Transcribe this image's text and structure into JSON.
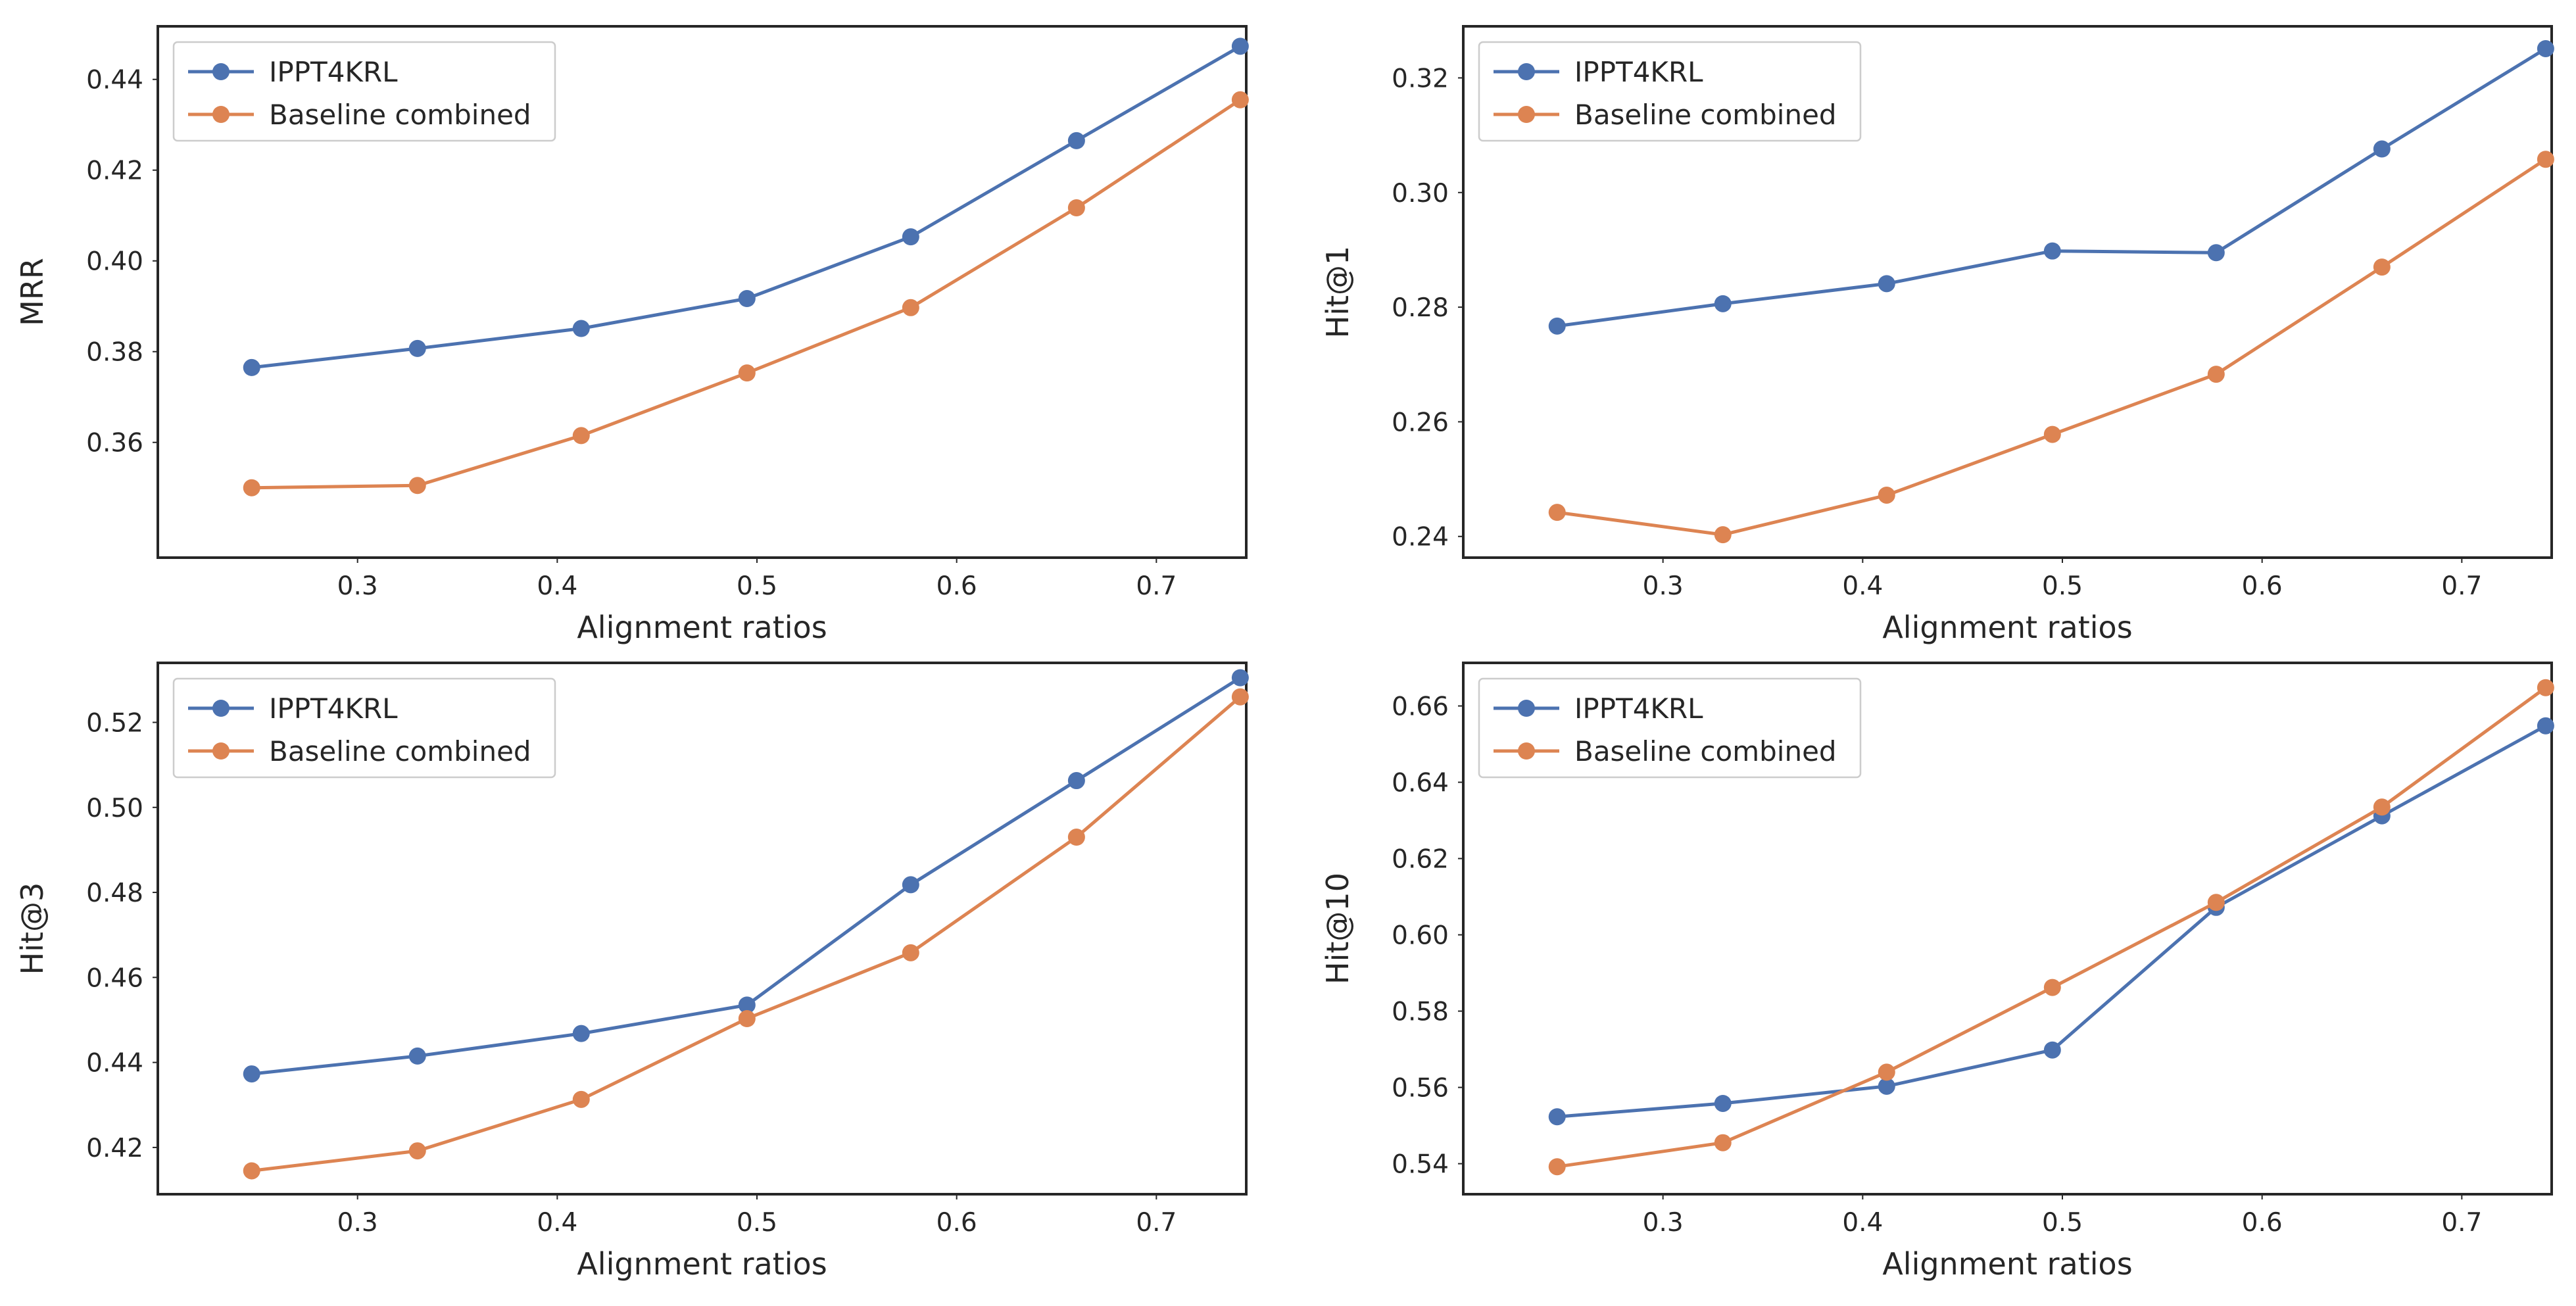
{
  "figure": {
    "title": ""
  },
  "chart_data": [
    {
      "type": "line",
      "title": "",
      "xlabel": "Alignment ratios",
      "ylabel": "MRR",
      "x": [
        0.247,
        0.33,
        0.412,
        0.495,
        0.577,
        0.66,
        0.742
      ],
      "series": [
        {
          "name": "IPPT4KRL",
          "color": "#4c72b0",
          "values": [
            0.3765,
            0.3807,
            0.3851,
            0.3917,
            0.4053,
            0.4265,
            0.4473
          ]
        },
        {
          "name": "Baseline combined",
          "color": "#dd8452",
          "values": [
            0.35,
            0.3505,
            0.3615,
            0.3753,
            0.3897,
            0.4117,
            0.4355
          ]
        }
      ],
      "xlim": [
        0.2,
        0.745
      ],
      "ylim": [
        0.3346,
        0.4517
      ],
      "xticks": [
        0.3,
        0.4,
        0.5,
        0.6,
        0.7
      ],
      "xtick_labels": [
        "0.3",
        "0.4",
        "0.5",
        "0.6",
        "0.7"
      ],
      "yticks": [
        0.36,
        0.38,
        0.4,
        0.42,
        0.44
      ],
      "ytick_labels": [
        "0.36",
        "0.38",
        "0.40",
        "0.42",
        "0.44"
      ],
      "legend": "upper-left",
      "grid": false
    },
    {
      "type": "line",
      "title": "",
      "xlabel": "Alignment ratios",
      "ylabel": "Hit@1",
      "x": [
        0.247,
        0.33,
        0.412,
        0.495,
        0.577,
        0.66,
        0.742
      ],
      "series": [
        {
          "name": "IPPT4KRL",
          "color": "#4c72b0",
          "values": [
            0.2767,
            0.2806,
            0.2841,
            0.2898,
            0.2895,
            0.3076,
            0.3251
          ]
        },
        {
          "name": "Baseline combined",
          "color": "#dd8452",
          "values": [
            0.2442,
            0.2403,
            0.2472,
            0.2578,
            0.2683,
            0.287,
            0.3058
          ]
        }
      ],
      "xlim": [
        0.2,
        0.745
      ],
      "ylim": [
        0.2363,
        0.329
      ],
      "xticks": [
        0.3,
        0.4,
        0.5,
        0.6,
        0.7
      ],
      "xtick_labels": [
        "0.3",
        "0.4",
        "0.5",
        "0.6",
        "0.7"
      ],
      "yticks": [
        0.24,
        0.26,
        0.28,
        0.3,
        0.32
      ],
      "ytick_labels": [
        "0.24",
        "0.26",
        "0.28",
        "0.30",
        "0.32"
      ],
      "legend": "upper-left",
      "grid": false
    },
    {
      "type": "line",
      "title": "",
      "xlabel": "Alignment ratios",
      "ylabel": "Hit@3",
      "x": [
        0.247,
        0.33,
        0.412,
        0.495,
        0.577,
        0.66,
        0.742
      ],
      "series": [
        {
          "name": "IPPT4KRL",
          "color": "#4c72b0",
          "values": [
            0.4373,
            0.4415,
            0.4468,
            0.4535,
            0.4818,
            0.5063,
            0.5305
          ]
        },
        {
          "name": "Baseline combined",
          "color": "#dd8452",
          "values": [
            0.4145,
            0.4192,
            0.4313,
            0.4503,
            0.4658,
            0.493,
            0.526
          ]
        }
      ],
      "xlim": [
        0.2,
        0.745
      ],
      "ylim": [
        0.409,
        0.534
      ],
      "xticks": [
        0.3,
        0.4,
        0.5,
        0.6,
        0.7
      ],
      "xtick_labels": [
        "0.3",
        "0.4",
        "0.5",
        "0.6",
        "0.7"
      ],
      "yticks": [
        0.42,
        0.44,
        0.46,
        0.48,
        0.5,
        0.52
      ],
      "ytick_labels": [
        "0.42",
        "0.44",
        "0.46",
        "0.48",
        "0.50",
        "0.52"
      ],
      "legend": "upper-left",
      "grid": false
    },
    {
      "type": "line",
      "title": "",
      "xlabel": "Alignment ratios",
      "ylabel": "Hit@10",
      "x": [
        0.247,
        0.33,
        0.412,
        0.495,
        0.577,
        0.66,
        0.742
      ],
      "series": [
        {
          "name": "IPPT4KRL",
          "color": "#4c72b0",
          "values": [
            0.5523,
            0.5558,
            0.5603,
            0.5698,
            0.6072,
            0.6312,
            0.6548
          ]
        },
        {
          "name": "Baseline combined",
          "color": "#dd8452",
          "values": [
            0.5392,
            0.5455,
            0.564,
            0.5862,
            0.6085,
            0.6335,
            0.6648
          ]
        }
      ],
      "xlim": [
        0.2,
        0.745
      ],
      "ylim": [
        0.532,
        0.6713
      ],
      "xticks": [
        0.3,
        0.4,
        0.5,
        0.6,
        0.7
      ],
      "xtick_labels": [
        "0.3",
        "0.4",
        "0.5",
        "0.6",
        "0.7"
      ],
      "yticks": [
        0.54,
        0.56,
        0.58,
        0.6,
        0.62,
        0.64,
        0.66
      ],
      "ytick_labels": [
        "0.54",
        "0.56",
        "0.58",
        "0.60",
        "0.62",
        "0.64",
        "0.66"
      ],
      "legend": "upper-left",
      "grid": false
    }
  ]
}
